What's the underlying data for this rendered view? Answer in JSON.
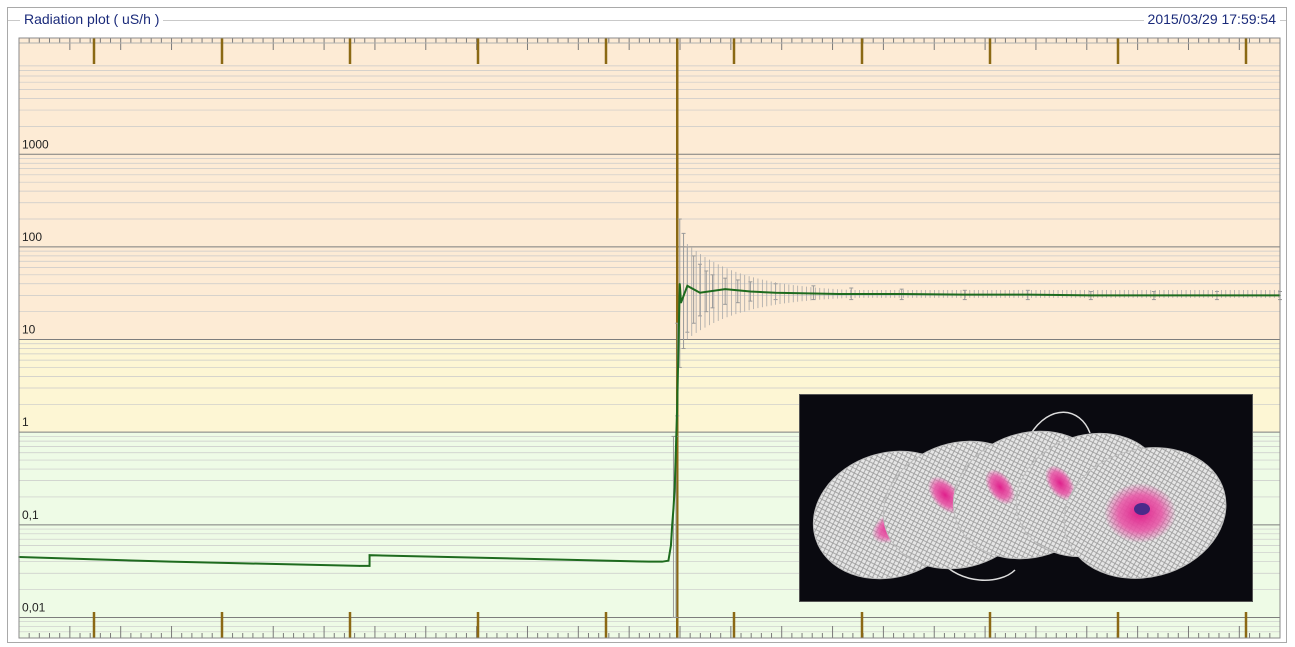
{
  "window": {
    "title": "Radiation plot ( uS/h )",
    "timestamp": "2015/03/29 17:59:54"
  },
  "colors": {
    "zone_high": "#fdebd5",
    "zone_mid": "#fdf6d4",
    "zone_low": "#eefbe6",
    "series": "#1e6b1e",
    "error_bars": "#9a9a9a",
    "marker": "#8b6914"
  },
  "inset_image": {
    "icon": "stack-of-mesh-discs-image"
  },
  "chart_data": {
    "type": "line",
    "yscale": "log",
    "ylim": [
      0.006,
      18000
    ],
    "y_ticks": [
      {
        "value": 1000,
        "label": "1000"
      },
      {
        "value": 100,
        "label": "100"
      },
      {
        "value": 10,
        "label": "10"
      },
      {
        "value": 1,
        "label": "1"
      },
      {
        "value": 0.1,
        "label": "0,1"
      },
      {
        "value": 0.01,
        "label": "0,01"
      }
    ],
    "x_major_ticks": 10,
    "zones": [
      {
        "from": 10,
        "to": 18000,
        "color": "#fdebd5"
      },
      {
        "from": 1,
        "to": 10,
        "color": "#fdf6d4"
      },
      {
        "from": 0.006,
        "to": 1,
        "color": "#eefbe6"
      }
    ],
    "event_marker_x": 0.522,
    "grid": true,
    "series": [
      {
        "x": [
          0,
          0.12,
          0.27,
          0.278,
          0.278,
          0.5,
          0.51,
          0.515,
          0.517,
          0.518,
          0.519,
          0.52,
          0.522,
          0.524,
          0.525,
          0.53,
          0.54,
          0.56,
          0.58,
          0.6,
          0.65,
          0.7,
          0.75,
          0.8,
          0.85,
          0.9,
          0.95,
          1.0
        ],
        "values": [
          0.045,
          0.04,
          0.036,
          0.036,
          0.047,
          0.04,
          0.04,
          0.041,
          0.06,
          0.1,
          0.15,
          0.25,
          2.0,
          40,
          25,
          38,
          32,
          35,
          33,
          32,
          31,
          31,
          30.5,
          30.5,
          30,
          30,
          30,
          30
        ]
      }
    ],
    "error_bars": [
      {
        "x": 0.519,
        "lo": 0.01,
        "hi": 0.9
      },
      {
        "x": 0.521,
        "lo": 0.01,
        "hi": 0.9
      },
      {
        "x": 0.522,
        "lo": 1.5,
        "hi": 15
      },
      {
        "x": 0.524,
        "lo": 5,
        "hi": 200
      },
      {
        "x": 0.527,
        "lo": 8,
        "hi": 140
      },
      {
        "x": 0.53,
        "lo": 12,
        "hi": 100
      },
      {
        "x": 0.535,
        "lo": 15,
        "hi": 80
      },
      {
        "x": 0.54,
        "lo": 18,
        "hi": 65
      },
      {
        "x": 0.545,
        "lo": 20,
        "hi": 55
      },
      {
        "x": 0.55,
        "lo": 22,
        "hi": 50
      },
      {
        "x": 0.56,
        "lo": 24,
        "hi": 46
      },
      {
        "x": 0.57,
        "lo": 25,
        "hi": 44
      },
      {
        "x": 0.58,
        "lo": 26,
        "hi": 42
      },
      {
        "x": 0.6,
        "lo": 27,
        "hi": 40
      },
      {
        "x": 0.63,
        "lo": 27,
        "hi": 38
      },
      {
        "x": 0.66,
        "lo": 27,
        "hi": 36
      },
      {
        "x": 0.7,
        "lo": 27,
        "hi": 35
      },
      {
        "x": 0.75,
        "lo": 27,
        "hi": 34
      },
      {
        "x": 0.8,
        "lo": 27,
        "hi": 34
      },
      {
        "x": 0.85,
        "lo": 27,
        "hi": 33
      },
      {
        "x": 0.9,
        "lo": 27,
        "hi": 33
      },
      {
        "x": 0.95,
        "lo": 27,
        "hi": 33
      },
      {
        "x": 1.0,
        "lo": 27,
        "hi": 33
      }
    ]
  }
}
